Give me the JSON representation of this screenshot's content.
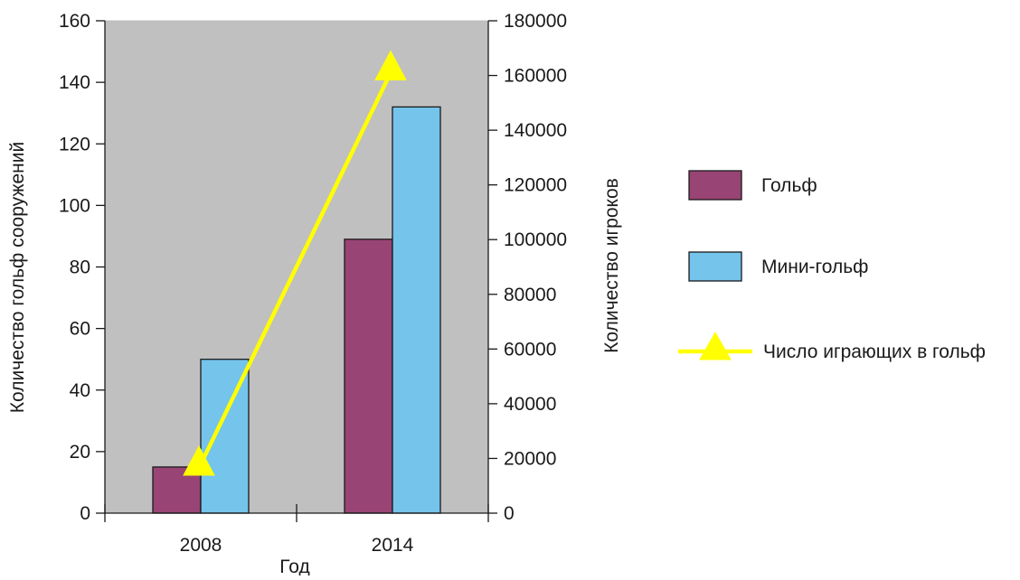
{
  "chart_data": {
    "type": "bar",
    "categories": [
      "2008",
      "2014"
    ],
    "xlabel": "Год",
    "ylabel": "Количество гольф сооружений",
    "y2label": "Количество игроков",
    "ylim": [
      0,
      160
    ],
    "y2lim": [
      0,
      180000
    ],
    "yticks": [
      "0",
      "20",
      "40",
      "60",
      "80",
      "100",
      "120",
      "140",
      "160"
    ],
    "y2ticks": [
      "0",
      "20000",
      "40000",
      "60000",
      "80000",
      "100000",
      "120000",
      "140000",
      "160000",
      "180000"
    ],
    "plot_background": "#c0c0c0",
    "legend_position": "right",
    "series": [
      {
        "name": "Гольф",
        "type": "bar",
        "axis": "left",
        "color": "#984474",
        "values": [
          15,
          89
        ]
      },
      {
        "name": "Мини-гольф",
        "type": "bar",
        "axis": "left",
        "color": "#74c4ec",
        "values": [
          50,
          132
        ]
      },
      {
        "name": "Число играющих в гольф",
        "type": "line",
        "axis": "right",
        "color": "#ffff00",
        "marker": "triangle",
        "values": [
          16500,
          161000
        ]
      }
    ]
  }
}
